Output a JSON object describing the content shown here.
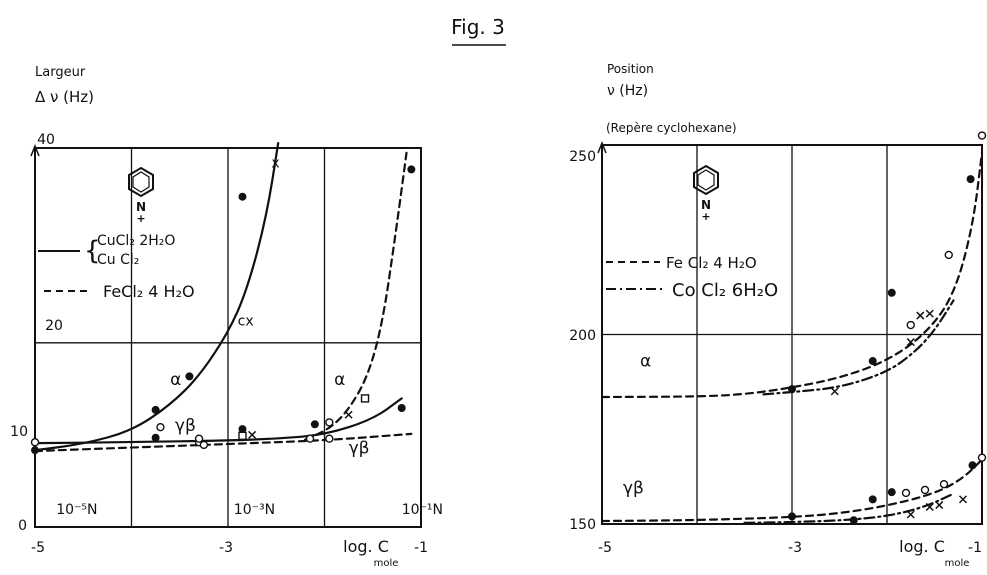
{
  "figure": {
    "title": "Fig. 3"
  },
  "chart_data": [
    {
      "type": "line",
      "ylabel_line1": "Largeur",
      "ylabel_line2": "Δ ν (Hz)",
      "xlabel": "log. C",
      "xunit": "mole",
      "x_ticks": [
        "-5",
        "-3",
        "-1"
      ],
      "y_ticks": [
        "0",
        "10",
        "20",
        "40"
      ],
      "xlim": [
        -5,
        -1
      ],
      "y_scale": [
        {
          "value": 0,
          "frac": 0.0
        },
        {
          "value": 10,
          "frac": 0.233
        },
        {
          "value": 20,
          "frac": 0.486
        },
        {
          "value": 40,
          "frac": 1.0
        }
      ],
      "grid": true,
      "molecule": "pyridine N⁺",
      "legend": [
        {
          "style": "solid",
          "label1": "CuCl₂ 2H₂O",
          "label2": "Cu Cl₂"
        },
        {
          "style": "dashed",
          "label1": "FeCl₂ 4 H₂O"
        }
      ],
      "annotations": [
        {
          "text": "10⁻⁵N",
          "x": -4.78,
          "y": 1.5
        },
        {
          "text": "10⁻³N",
          "x": -2.94,
          "y": 1.5
        },
        {
          "text": "10⁻¹N",
          "x": -1.2,
          "y": 1.5
        },
        {
          "text": "α",
          "x": -3.6,
          "y": 15.6
        },
        {
          "text": "γβ",
          "x": -3.55,
          "y": 10.8
        },
        {
          "text": "α",
          "x": -1.9,
          "y": 15.6
        },
        {
          "text": "γβ",
          "x": -1.75,
          "y": 8.3
        },
        {
          "text": "x",
          "x": -2.55,
          "y": 38.0
        },
        {
          "text": "cx",
          "x": -2.9,
          "y": 21.8
        }
      ],
      "series": [
        {
          "name": "CuCl₂ 2H₂O / Cu Cl₂ (α)",
          "style": "solid",
          "x": [
            -5.0,
            -4.5,
            -4.0,
            -3.6,
            -3.3,
            -3.0,
            -2.8,
            -2.6,
            -2.48
          ],
          "y": [
            8.7,
            9.4,
            10.8,
            13.5,
            16.5,
            21.0,
            25.5,
            33.0,
            40.5
          ]
        },
        {
          "name": "CuCl₂ 2H₂O / Cu Cl₂ (γβ)",
          "style": "solid",
          "x": [
            -5.0,
            -4.0,
            -3.0,
            -2.5,
            -2.0,
            -1.5,
            -1.2
          ],
          "y": [
            9.5,
            9.6,
            9.8,
            10.0,
            10.4,
            12.0,
            14.2
          ]
        },
        {
          "name": "FeCl₂ 4 H₂O (α)",
          "style": "dashed",
          "x": [
            -2.2,
            -1.95,
            -1.75,
            -1.55,
            -1.4,
            -1.28,
            -1.15
          ],
          "y": [
            9.9,
            11.0,
            13.0,
            16.5,
            22.0,
            30.0,
            39.5
          ]
        },
        {
          "name": "FeCl₂ 4 H₂O (γβ)",
          "style": "dashed",
          "x": [
            -5.0,
            -4.0,
            -3.0,
            -2.0,
            -1.1
          ],
          "y": [
            8.6,
            9.0,
            9.4,
            9.8,
            10.5
          ]
        }
      ],
      "points": [
        {
          "x": -5.0,
          "y": 8.7,
          "marker": "dot"
        },
        {
          "x": -5.0,
          "y": 9.6,
          "marker": "ring"
        },
        {
          "x": -3.75,
          "y": 13.0,
          "marker": "dot"
        },
        {
          "x": -3.75,
          "y": 10.1,
          "marker": "dot"
        },
        {
          "x": -3.7,
          "y": 11.2,
          "marker": "ring"
        },
        {
          "x": -3.4,
          "y": 16.5,
          "marker": "dot"
        },
        {
          "x": -3.3,
          "y": 9.6,
          "marker": "ring"
        },
        {
          "x": -3.3,
          "y": 10.0,
          "marker": "ring"
        },
        {
          "x": -3.25,
          "y": 9.3,
          "marker": "ring"
        },
        {
          "x": -2.85,
          "y": 35.0,
          "marker": "dot"
        },
        {
          "x": -2.85,
          "y": 11.0,
          "marker": "dot"
        },
        {
          "x": -2.85,
          "y": 10.3,
          "marker": "square"
        },
        {
          "x": -2.75,
          "y": 10.4,
          "marker": "x"
        },
        {
          "x": -2.1,
          "y": 11.5,
          "marker": "dot"
        },
        {
          "x": -1.95,
          "y": 11.7,
          "marker": "ring"
        },
        {
          "x": -2.15,
          "y": 10.0,
          "marker": "ring"
        },
        {
          "x": -1.95,
          "y": 10.0,
          "marker": "ring"
        },
        {
          "x": -1.75,
          "y": 12.5,
          "marker": "x"
        },
        {
          "x": -1.58,
          "y": 14.2,
          "marker": "square"
        },
        {
          "x": -1.2,
          "y": 13.2,
          "marker": "dot"
        },
        {
          "x": -1.1,
          "y": 37.8,
          "marker": "dot"
        }
      ]
    },
    {
      "type": "line",
      "ylabel_line1": "Position",
      "ylabel_line2": "ν (Hz)",
      "ylabel_line3": "(Repère cyclohexane)",
      "xlabel": "log. C",
      "xunit": "mole",
      "x_ticks": [
        "-5",
        "-3",
        "-1"
      ],
      "y_ticks": [
        "150",
        "200",
        "250"
      ],
      "xlim": [
        -5,
        -1
      ],
      "ylim": [
        150,
        250
      ],
      "grid": true,
      "molecule": "pyridine N⁺",
      "legend": [
        {
          "style": "dashed",
          "label1": "Fe Cl₂ 4 H₂O"
        },
        {
          "style": "dashdot",
          "label1": "Co Cl₂ 6H₂O"
        }
      ],
      "annotations": [
        {
          "text": "α",
          "x": -4.6,
          "y": 191.5
        },
        {
          "text": "γβ",
          "x": -4.78,
          "y": 158
        }
      ],
      "series": [
        {
          "name": "Fe Cl₂ 4 H₂O (α)",
          "style": "dashed",
          "x": [
            -5.0,
            -4.0,
            -3.5,
            -3.0,
            -2.5,
            -2.0,
            -1.6,
            -1.3,
            -1.1,
            -1.0
          ],
          "y": [
            183.5,
            183.6,
            184.2,
            186.0,
            188.5,
            193.0,
            200.0,
            210.0,
            228.0,
            248.0
          ]
        },
        {
          "name": "Co Cl₂ 6H₂O (α)",
          "style": "dashdot",
          "x": [
            -3.3,
            -3.0,
            -2.5,
            -2.0,
            -1.7,
            -1.5,
            -1.3
          ],
          "y": [
            184.2,
            184.8,
            186.0,
            190.0,
            195.5,
            201.0,
            209.0
          ]
        },
        {
          "name": "Fe Cl₂ 4 H₂O (γβ)",
          "style": "dashed",
          "x": [
            -5.0,
            -4.0,
            -3.0,
            -2.5,
            -2.0,
            -1.5,
            -1.2,
            -1.0
          ],
          "y": [
            150.8,
            151.0,
            151.8,
            152.8,
            154.8,
            158.0,
            162.0,
            167.0
          ]
        },
        {
          "name": "Co Cl₂ 6H₂O (γβ)",
          "style": "dashdot",
          "x": [
            -3.5,
            -3.0,
            -2.5,
            -2.0,
            -1.6,
            -1.3
          ],
          "y": [
            150.3,
            150.5,
            150.9,
            152.0,
            154.5,
            158.0
          ]
        }
      ],
      "points": [
        {
          "x": -3.0,
          "y": 185.6,
          "marker": "dot"
        },
        {
          "x": -2.55,
          "y": 185.0,
          "marker": "x"
        },
        {
          "x": -2.15,
          "y": 193.0,
          "marker": "dot"
        },
        {
          "x": -1.95,
          "y": 211.0,
          "marker": "dot"
        },
        {
          "x": -1.75,
          "y": 202.5,
          "marker": "ring"
        },
        {
          "x": -1.75,
          "y": 198.0,
          "marker": "x"
        },
        {
          "x": -1.65,
          "y": 205.0,
          "marker": "x"
        },
        {
          "x": -1.55,
          "y": 205.5,
          "marker": "x"
        },
        {
          "x": -1.35,
          "y": 221.0,
          "marker": "ring"
        },
        {
          "x": -1.12,
          "y": 241.0,
          "marker": "dot"
        },
        {
          "x": -1.0,
          "y": 252.5,
          "marker": "ring"
        },
        {
          "x": -3.0,
          "y": 152.0,
          "marker": "dot"
        },
        {
          "x": -2.15,
          "y": 156.5,
          "marker": "dot"
        },
        {
          "x": -1.95,
          "y": 158.4,
          "marker": "dot"
        },
        {
          "x": -1.8,
          "y": 158.2,
          "marker": "ring"
        },
        {
          "x": -1.6,
          "y": 159.0,
          "marker": "ring"
        },
        {
          "x": -1.4,
          "y": 160.5,
          "marker": "ring"
        },
        {
          "x": -1.1,
          "y": 165.5,
          "marker": "dot"
        },
        {
          "x": -1.0,
          "y": 167.5,
          "marker": "ring"
        },
        {
          "x": -2.35,
          "y": 151.0,
          "marker": "dot"
        },
        {
          "x": -1.75,
          "y": 152.5,
          "marker": "x"
        },
        {
          "x": -1.55,
          "y": 154.5,
          "marker": "x"
        },
        {
          "x": -1.45,
          "y": 155.0,
          "marker": "x"
        },
        {
          "x": -1.2,
          "y": 156.5,
          "marker": "x"
        }
      ]
    }
  ]
}
